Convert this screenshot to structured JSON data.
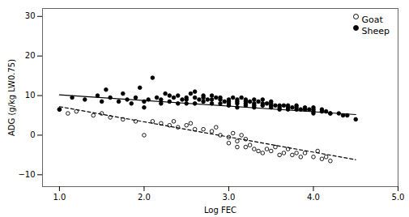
{
  "chart_data": {
    "type": "scatter",
    "xlabel": "Log FEC",
    "ylabel": "ADG (g/kg LW0.75)",
    "xlim": [
      0.8,
      5.0
    ],
    "ylim": [
      -13,
      32
    ],
    "xticks": [
      1,
      2,
      3,
      4,
      5
    ],
    "yticks": [
      -10,
      0,
      10,
      20,
      30
    ],
    "grid": false,
    "legend": "upper right",
    "series": [
      {
        "name": "Goat",
        "color": "black",
        "marker": "open circle",
        "x": [
          1.0,
          1.1,
          1.2,
          1.4,
          1.5,
          1.6,
          1.75,
          1.9,
          2.0,
          2.1,
          2.2,
          2.3,
          2.35,
          2.4,
          2.5,
          2.55,
          2.6,
          2.7,
          2.8,
          2.85,
          2.9,
          3.0,
          3.0,
          3.05,
          3.1,
          3.1,
          3.15,
          3.2,
          3.2,
          3.25,
          3.3,
          3.35,
          3.4,
          3.45,
          3.5,
          3.55,
          3.6,
          3.65,
          3.7,
          3.75,
          3.8,
          3.85,
          3.9,
          4.0,
          4.05,
          4.1,
          4.15,
          4.2
        ],
        "values": [
          6.5,
          5.5,
          6.0,
          5.0,
          5.5,
          4.5,
          4.0,
          3.5,
          0.0,
          3.5,
          3.0,
          2.5,
          3.5,
          2.0,
          2.5,
          3.0,
          1.5,
          1.5,
          1.0,
          2.0,
          0.0,
          -0.5,
          -2.0,
          0.5,
          -1.5,
          -3.0,
          0.0,
          -3.0,
          -1.0,
          -2.5,
          -3.5,
          -4.0,
          -4.5,
          -3.5,
          -4.0,
          -3.0,
          -5.0,
          -4.5,
          -3.5,
          -5.0,
          -4.5,
          -5.5,
          -4.5,
          -5.5,
          -4.0,
          -6.0,
          -5.5,
          -6.5
        ],
        "trend": {
          "x": [
            1.0,
            4.5
          ],
          "values": [
            7.2,
            -6.2
          ],
          "line_style": "dashed"
        }
      },
      {
        "name": "Sheep",
        "color": "black",
        "marker": "filled circle",
        "x": [
          1.0,
          1.15,
          1.3,
          1.45,
          1.5,
          1.55,
          1.6,
          1.7,
          1.75,
          1.8,
          1.85,
          1.9,
          1.95,
          2.0,
          2.0,
          2.05,
          2.1,
          2.15,
          2.2,
          2.2,
          2.25,
          2.3,
          2.3,
          2.35,
          2.4,
          2.4,
          2.45,
          2.5,
          2.5,
          2.5,
          2.55,
          2.6,
          2.6,
          2.6,
          2.65,
          2.7,
          2.7,
          2.7,
          2.75,
          2.8,
          2.8,
          2.8,
          2.85,
          2.9,
          2.9,
          2.9,
          2.95,
          3.0,
          3.0,
          3.0,
          3.0,
          3.05,
          3.1,
          3.1,
          3.1,
          3.1,
          3.15,
          3.2,
          3.2,
          3.2,
          3.2,
          3.25,
          3.3,
          3.3,
          3.3,
          3.3,
          3.35,
          3.4,
          3.4,
          3.4,
          3.45,
          3.5,
          3.5,
          3.5,
          3.5,
          3.55,
          3.6,
          3.6,
          3.6,
          3.65,
          3.7,
          3.7,
          3.7,
          3.75,
          3.8,
          3.8,
          3.8,
          3.85,
          3.9,
          3.9,
          3.95,
          4.0,
          4.0,
          4.0,
          4.0,
          4.1,
          4.1,
          4.15,
          4.2,
          4.2,
          4.3,
          4.35,
          4.4,
          4.5
        ],
        "values": [
          6.5,
          9.5,
          9.0,
          10.0,
          8.5,
          11.5,
          9.5,
          8.5,
          10.5,
          9.0,
          8.0,
          9.5,
          12.0,
          8.5,
          7.0,
          9.0,
          14.5,
          9.5,
          9.0,
          8.0,
          10.5,
          10.0,
          8.5,
          9.5,
          10.0,
          8.0,
          9.0,
          9.5,
          9.0,
          8.0,
          10.5,
          11.0,
          9.5,
          8.0,
          9.0,
          10.0,
          9.5,
          8.5,
          9.0,
          10.0,
          9.0,
          8.0,
          9.5,
          9.5,
          9.0,
          8.0,
          8.5,
          9.0,
          8.5,
          8.0,
          7.5,
          9.5,
          9.0,
          8.5,
          8.0,
          7.0,
          9.5,
          9.0,
          8.5,
          8.0,
          7.5,
          8.5,
          9.0,
          8.0,
          7.5,
          7.0,
          8.5,
          9.0,
          8.0,
          7.5,
          8.0,
          8.5,
          8.0,
          7.5,
          7.0,
          7.5,
          7.5,
          7.0,
          6.5,
          7.5,
          7.5,
          7.0,
          6.5,
          7.0,
          7.5,
          7.0,
          6.5,
          6.5,
          7.0,
          6.5,
          6.5,
          7.0,
          6.5,
          6.0,
          5.5,
          6.5,
          6.0,
          6.0,
          5.5,
          5.5,
          5.5,
          5.0,
          5.0,
          4.0
        ],
        "trend": {
          "x": [
            1.0,
            4.5
          ],
          "values": [
            10.2,
            5.2
          ],
          "line_style": "solid"
        }
      }
    ]
  }
}
